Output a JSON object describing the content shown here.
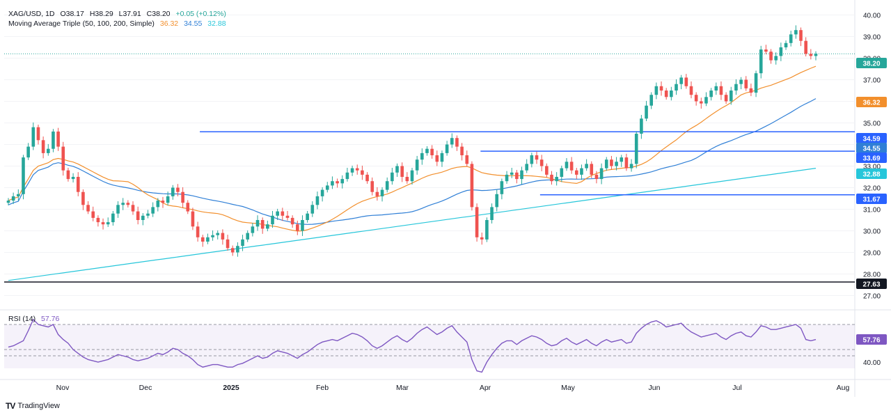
{
  "header": {
    "symbol": "XAG/USD, 1D",
    "open": "O38.17",
    "high": "H38.29",
    "low": "L37.91",
    "close": "C38.20",
    "change": "+0.05 (+0.12%)",
    "ma_label": "Moving Average Triple (50, 100, 200, Simple)",
    "ma_values": [
      "36.32",
      "34.55",
      "32.88"
    ],
    "rsi_label": "RSI (14)",
    "rsi_value": "57.76"
  },
  "brand": "TradingView",
  "colors": {
    "up": "#26a69a",
    "down": "#ef5350",
    "ma50": "#f28f2c",
    "ma100": "#2f7fd6",
    "ma200": "#26c6da",
    "rsi": "#7e57c2",
    "hline": "#2962ff",
    "support_black": "#131722"
  },
  "chart_data": [
    {
      "type": "candlestick",
      "y_ticks": [
        27,
        28,
        29,
        30,
        31,
        32,
        33,
        34,
        35,
        36,
        37,
        38,
        39,
        40
      ],
      "ylim": [
        26.5,
        40.5
      ],
      "x_labels": [
        "Nov",
        "Dec",
        "2025",
        "Feb",
        "Mar",
        "Apr",
        "May",
        "Jun",
        "Jul",
        "Aug"
      ],
      "last_price": 38.2,
      "price_labels": [
        {
          "value": "38.20",
          "color": "#26a69a"
        },
        {
          "value": "36.32",
          "color": "#f28f2c"
        },
        {
          "value": "34.59",
          "color": "#2962ff"
        },
        {
          "value": "34.55",
          "color": "#2f7fd6"
        },
        {
          "value": "33.69",
          "color": "#2962ff"
        },
        {
          "value": "32.88",
          "color": "#26c6da"
        },
        {
          "value": "31.67",
          "color": "#2962ff"
        },
        {
          "value": "27.63",
          "color": "#131722"
        }
      ],
      "horizontal_lines": [
        {
          "value": 34.59,
          "from_day": 0.23
        },
        {
          "value": 33.69,
          "from_day": 0.56
        },
        {
          "value": 31.67,
          "from_day": 0.63
        },
        {
          "value": 27.63,
          "from_day": 0.0
        }
      ],
      "series_close": [
        31.4,
        31.6,
        31.7,
        33.4,
        33.9,
        34.8,
        34.2,
        33.6,
        33.8,
        34.6,
        33.9,
        32.8,
        32.4,
        32.5,
        31.8,
        31.2,
        30.9,
        30.6,
        30.4,
        30.3,
        30.4,
        30.8,
        31.2,
        31.3,
        31.2,
        30.9,
        30.5,
        30.7,
        30.8,
        31.1,
        31.4,
        31.3,
        31.6,
        32.0,
        31.8,
        31.3,
        30.9,
        30.2,
        29.7,
        29.5,
        29.7,
        29.8,
        29.9,
        29.6,
        29.2,
        29.0,
        29.3,
        29.6,
        29.9,
        30.2,
        30.5,
        30.1,
        30.3,
        30.7,
        30.9,
        30.7,
        30.6,
        30.3,
        30.0,
        30.5,
        30.8,
        31.2,
        31.6,
        31.9,
        32.1,
        32.3,
        32.2,
        32.4,
        32.7,
        32.9,
        32.8,
        32.6,
        32.3,
        31.8,
        31.6,
        31.9,
        32.3,
        32.7,
        33.0,
        32.5,
        32.3,
        32.8,
        33.3,
        33.6,
        33.8,
        33.5,
        33.2,
        33.6,
        34.0,
        34.3,
        33.9,
        33.5,
        33.1,
        31.1,
        29.7,
        29.6,
        30.5,
        31.1,
        31.7,
        32.3,
        32.6,
        32.7,
        32.4,
        32.8,
        33.1,
        33.5,
        33.3,
        33.0,
        32.6,
        32.3,
        32.5,
        32.9,
        33.2,
        32.8,
        32.6,
        32.9,
        33.1,
        32.6,
        32.4,
        32.9,
        33.3,
        33.0,
        33.2,
        33.4,
        32.9,
        33.1,
        34.5,
        35.2,
        35.8,
        36.3,
        36.7,
        36.5,
        36.2,
        36.5,
        36.8,
        37.1,
        36.7,
        36.3,
        36.0,
        35.9,
        36.2,
        36.5,
        36.7,
        36.3,
        36.0,
        36.5,
        36.8,
        37.0,
        36.6,
        36.4,
        37.3,
        38.4,
        38.3,
        37.9,
        38.1,
        38.5,
        38.7,
        39.1,
        39.3,
        38.8,
        38.2,
        38.1,
        38.2
      ],
      "rsi": {
        "levels": [
          70,
          60,
          50,
          40
        ],
        "last": 57.76,
        "series": [
          52,
          53,
          55,
          57,
          65,
          74,
          70,
          69,
          68,
          70,
          62,
          58,
          55,
          50,
          47,
          44,
          42,
          41,
          40,
          41,
          42,
          44,
          46,
          45,
          44,
          42,
          41,
          42,
          43,
          45,
          47,
          46,
          48,
          51,
          50,
          47,
          45,
          42,
          38,
          36,
          37,
          38,
          38,
          37,
          36,
          36,
          38,
          39,
          41,
          43,
          45,
          43,
          44,
          47,
          49,
          48,
          47,
          45,
          43,
          46,
          48,
          51,
          54,
          56,
          57,
          58,
          57,
          59,
          61,
          63,
          62,
          60,
          57,
          53,
          51,
          53,
          56,
          59,
          61,
          58,
          56,
          59,
          63,
          66,
          68,
          65,
          62,
          64,
          67,
          69,
          64,
          60,
          56,
          42,
          33,
          32,
          40,
          46,
          51,
          55,
          57,
          57,
          54,
          57,
          59,
          61,
          60,
          58,
          55,
          53,
          54,
          57,
          59,
          56,
          54,
          56,
          58,
          55,
          53,
          56,
          58,
          56,
          57,
          58,
          55,
          56,
          63,
          67,
          70,
          72,
          73,
          71,
          68,
          69,
          70,
          71,
          67,
          64,
          62,
          60,
          61,
          62,
          63,
          60,
          58,
          61,
          63,
          64,
          61,
          60,
          64,
          69,
          68,
          66,
          66,
          67,
          68,
          69,
          70,
          67,
          58,
          57,
          58
        ]
      }
    }
  ]
}
